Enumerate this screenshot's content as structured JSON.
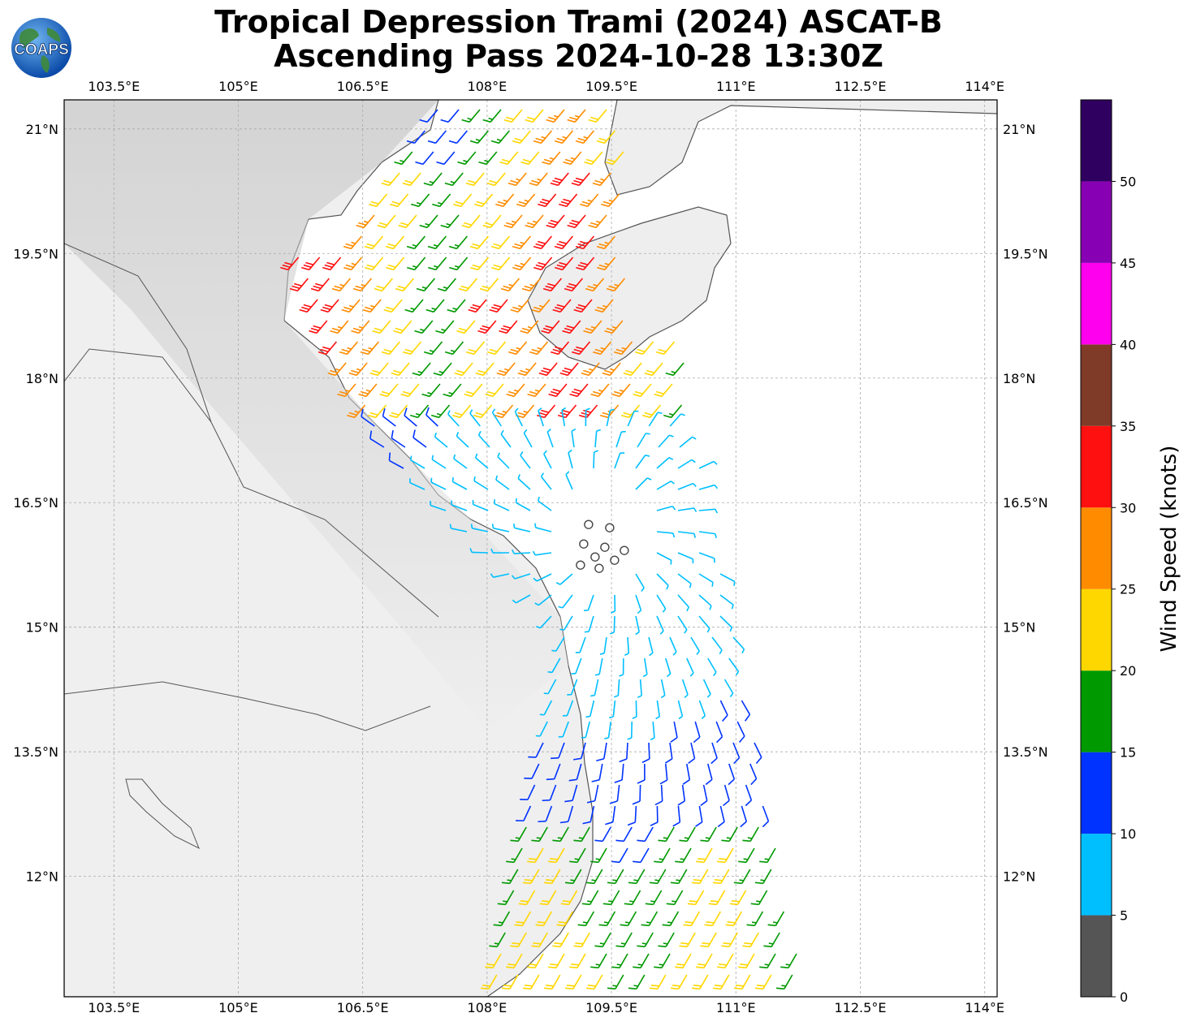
{
  "title": {
    "line1": "Tropical Depression Trami (2024) ASCAT-B",
    "line2": "Ascending Pass 2024-10-28 13:30Z"
  },
  "logo": {
    "text": "COAPS",
    "icon": "globe-icon"
  },
  "map": {
    "lon_range": [
      102.9,
      114.15
    ],
    "lat_range": [
      10.55,
      21.35
    ],
    "lon_ticks": [
      {
        "value": 103.5,
        "label": "103.5°E"
      },
      {
        "value": 105,
        "label": "105°E"
      },
      {
        "value": 106.5,
        "label": "106.5°E"
      },
      {
        "value": 108,
        "label": "108°E"
      },
      {
        "value": 109.5,
        "label": "109.5°E"
      },
      {
        "value": 111,
        "label": "111°E"
      },
      {
        "value": 112.5,
        "label": "112.5°E"
      },
      {
        "value": 114,
        "label": "114°E"
      }
    ],
    "lat_ticks": [
      {
        "value": 21,
        "label": "21°N"
      },
      {
        "value": 19.5,
        "label": "19.5°N"
      },
      {
        "value": 18,
        "label": "18°N"
      },
      {
        "value": 16.5,
        "label": "16.5°N"
      },
      {
        "value": 15,
        "label": "15°N"
      },
      {
        "value": 13.5,
        "label": "13.5°N"
      },
      {
        "value": 12,
        "label": "12°N"
      }
    ],
    "grid": true,
    "circulation_center": {
      "lon": 109.4,
      "lat": 16.1
    }
  },
  "colorbar": {
    "title": "Wind Speed (knots)",
    "bins": [
      {
        "from": 0,
        "to": 5,
        "color": "#555555"
      },
      {
        "from": 5,
        "to": 10,
        "color": "#00bfff"
      },
      {
        "from": 10,
        "to": 15,
        "color": "#0033ff"
      },
      {
        "from": 15,
        "to": 20,
        "color": "#009900"
      },
      {
        "from": 20,
        "to": 25,
        "color": "#ffd700"
      },
      {
        "from": 25,
        "to": 30,
        "color": "#ff8c00"
      },
      {
        "from": 30,
        "to": 35,
        "color": "#ff1010"
      },
      {
        "from": 35,
        "to": 40,
        "color": "#7f3a28"
      },
      {
        "from": 40,
        "to": 45,
        "color": "#ff00ee"
      },
      {
        "from": 45,
        "to": 50,
        "color": "#8800b3"
      },
      {
        "from": 50,
        "to": 55,
        "color": "#300060"
      }
    ],
    "tick_labels": [
      "0",
      "5",
      "10",
      "15",
      "20",
      "25",
      "30",
      "35",
      "40",
      "45",
      "50"
    ]
  }
}
